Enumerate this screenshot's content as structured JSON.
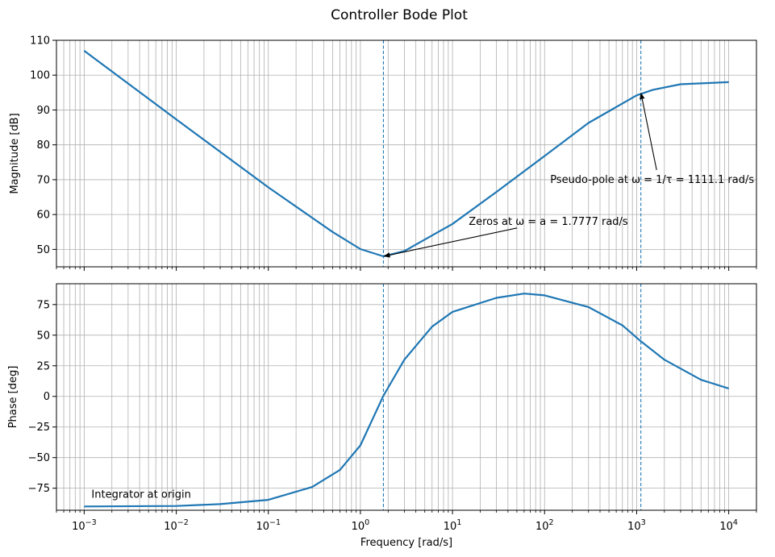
{
  "chart_data": {
    "type": "line",
    "title": "Controller Bode Plot",
    "colors": {
      "series": "#1f77b4",
      "vline": "#1f77b4",
      "grid": "#b0b0b0"
    },
    "x_scale": "log",
    "xlim": [
      0.0005,
      20000
    ],
    "xlabel": "Frequency [rad/s]",
    "xtick_labels": [
      "10",
      "10",
      "10",
      "10",
      "10",
      "10",
      "10",
      "10"
    ],
    "xtick_exponents": [
      "−3",
      "−2",
      "−1",
      "0",
      "1",
      "2",
      "3",
      "4"
    ],
    "markers": [
      1.7777,
      1111.1
    ],
    "grid": true,
    "panels": [
      {
        "ylabel": "Magnitude [dB]",
        "ylim": [
          45,
          110
        ],
        "ytick_labels": [
          "50",
          "60",
          "70",
          "80",
          "90",
          "100",
          "110"
        ],
        "series": [
          {
            "x": [
              0.001,
              0.01,
              0.1,
              0.5,
              1,
              1.7777,
              3,
              10,
              30,
              100,
              300,
              1000,
              1500,
              3000,
              10000
            ],
            "y": [
              107,
              87.3,
              67.8,
              55.0,
              50.1,
              48.0,
              49.5,
              57.3,
              66.5,
              76.8,
              86.3,
              94.2,
              95.8,
              97.4,
              98.0
            ]
          }
        ],
        "annotations": [
          {
            "text": "Zeros at ω = a = 1.7777 rad/s",
            "x": 1.7777,
            "y": 48.0,
            "text_x": 15,
            "text_y": 58
          },
          {
            "text": "Pseudo-pole at ω = 1/τ = 1111.1 rad/s",
            "x": 1111.1,
            "y": 95.0,
            "text_x": 115,
            "text_y": 70
          }
        ]
      },
      {
        "ylabel": "Phase [deg]",
        "ylim": [
          -93,
          92
        ],
        "ytick_labels": [
          "−75",
          "−50",
          "−25",
          "0",
          "25",
          "50",
          "75"
        ],
        "series": [
          {
            "x": [
              0.001,
              0.01,
              0.03,
              0.1,
              0.3,
              0.6,
              1,
              1.7777,
              3,
              6,
              10,
              30,
              60,
              100,
              300,
              700,
              1111.1,
              2000,
              5000,
              10000
            ],
            "y": [
              -89.9,
              -89.5,
              -88.0,
              -84.5,
              -74.0,
              -60.0,
              -40.0,
              0.5,
              30.0,
              57.0,
              69.0,
              80.5,
              84.0,
              82.5,
              73.0,
              58.0,
              45.0,
              30.0,
              13.5,
              6.5
            ]
          }
        ],
        "annotations": [
          {
            "text": "Integrator at origin",
            "text_x": 0.0012,
            "text_y": -80
          }
        ]
      }
    ]
  }
}
